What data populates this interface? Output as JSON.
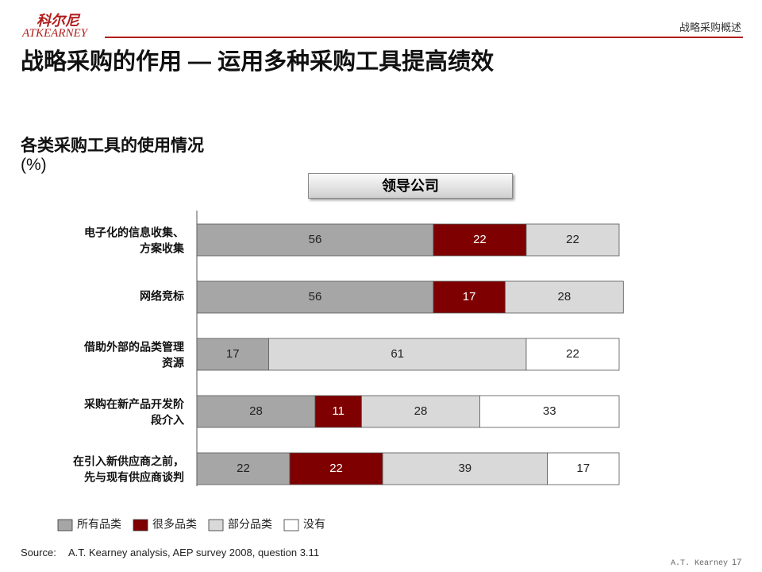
{
  "header": {
    "logo_cn": "科尔尼",
    "logo_en": "ATKEARNEY",
    "section": "战略采购概述"
  },
  "title": "战略采购的作用 — 运用多种采购工具提高绩效",
  "chart_data": {
    "type": "stacked-bar",
    "orientation": "horizontal",
    "title": "各类采购工具的使用情况",
    "unit": "(%)",
    "group_label": "领导公司",
    "categories": [
      [
        "电子化的信息收集、",
        "方案收集"
      ],
      [
        "网络竞标"
      ],
      [
        "借助外部的品类管理",
        "资源"
      ],
      [
        "采购在新产品开发阶",
        "段介入"
      ],
      [
        "在引入新供应商之前，",
        "先与现有供应商谈判"
      ]
    ],
    "xlim": [
      0,
      100
    ],
    "series": [
      {
        "name": "所有品类",
        "color": "#a6a6a6",
        "values": [
          56,
          56,
          17,
          28,
          22
        ]
      },
      {
        "name": "很多品类",
        "color": "#7f0000",
        "values": [
          22,
          17,
          null,
          11,
          22
        ]
      },
      {
        "name": "部分品类",
        "color": "#d9d9d9",
        "values": [
          22,
          28,
          61,
          28,
          39
        ]
      },
      {
        "name": "没有",
        "color": "#ffffff",
        "values": [
          null,
          null,
          22,
          33,
          17
        ]
      }
    ]
  },
  "footer": {
    "source_label": "Source:",
    "source": "A.T. Kearney analysis, AEP survey 2008, question 3.11",
    "company": "A.T. Kearney",
    "page": 17
  }
}
